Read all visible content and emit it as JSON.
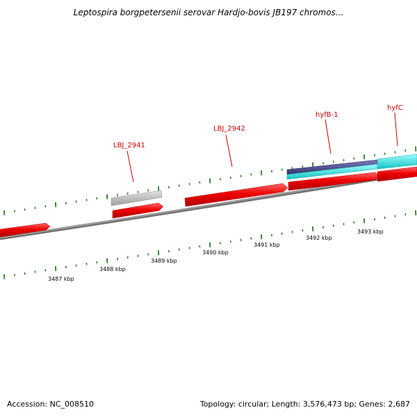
{
  "title": "Leptospira borgpetersenii serovar Hardjo-bovis JB197 chromos...",
  "footer": {
    "accession": "Accession: NC_008510",
    "summary": "Topology: circular; Length: 3,576,473 bp; Genes: 2,687"
  },
  "gene_labels": [
    "LBJ_2941",
    "LBJ_2942",
    "hyfB-1",
    "hyfC"
  ],
  "kbp_labels": [
    "3487 kbp",
    "3488 kbp",
    "3489 kbp",
    "3490 kbp",
    "3491 kbp",
    "3492 kbp",
    "3493 kbp"
  ],
  "colors": {
    "cds": "#ee0000",
    "pseudo": "#b4b4b4",
    "hit": "#22dddd",
    "domain": "#4a4a8c",
    "backbone": "#7a7a7a",
    "ticks": "#2a7a2a",
    "label": "#cc0000"
  }
}
